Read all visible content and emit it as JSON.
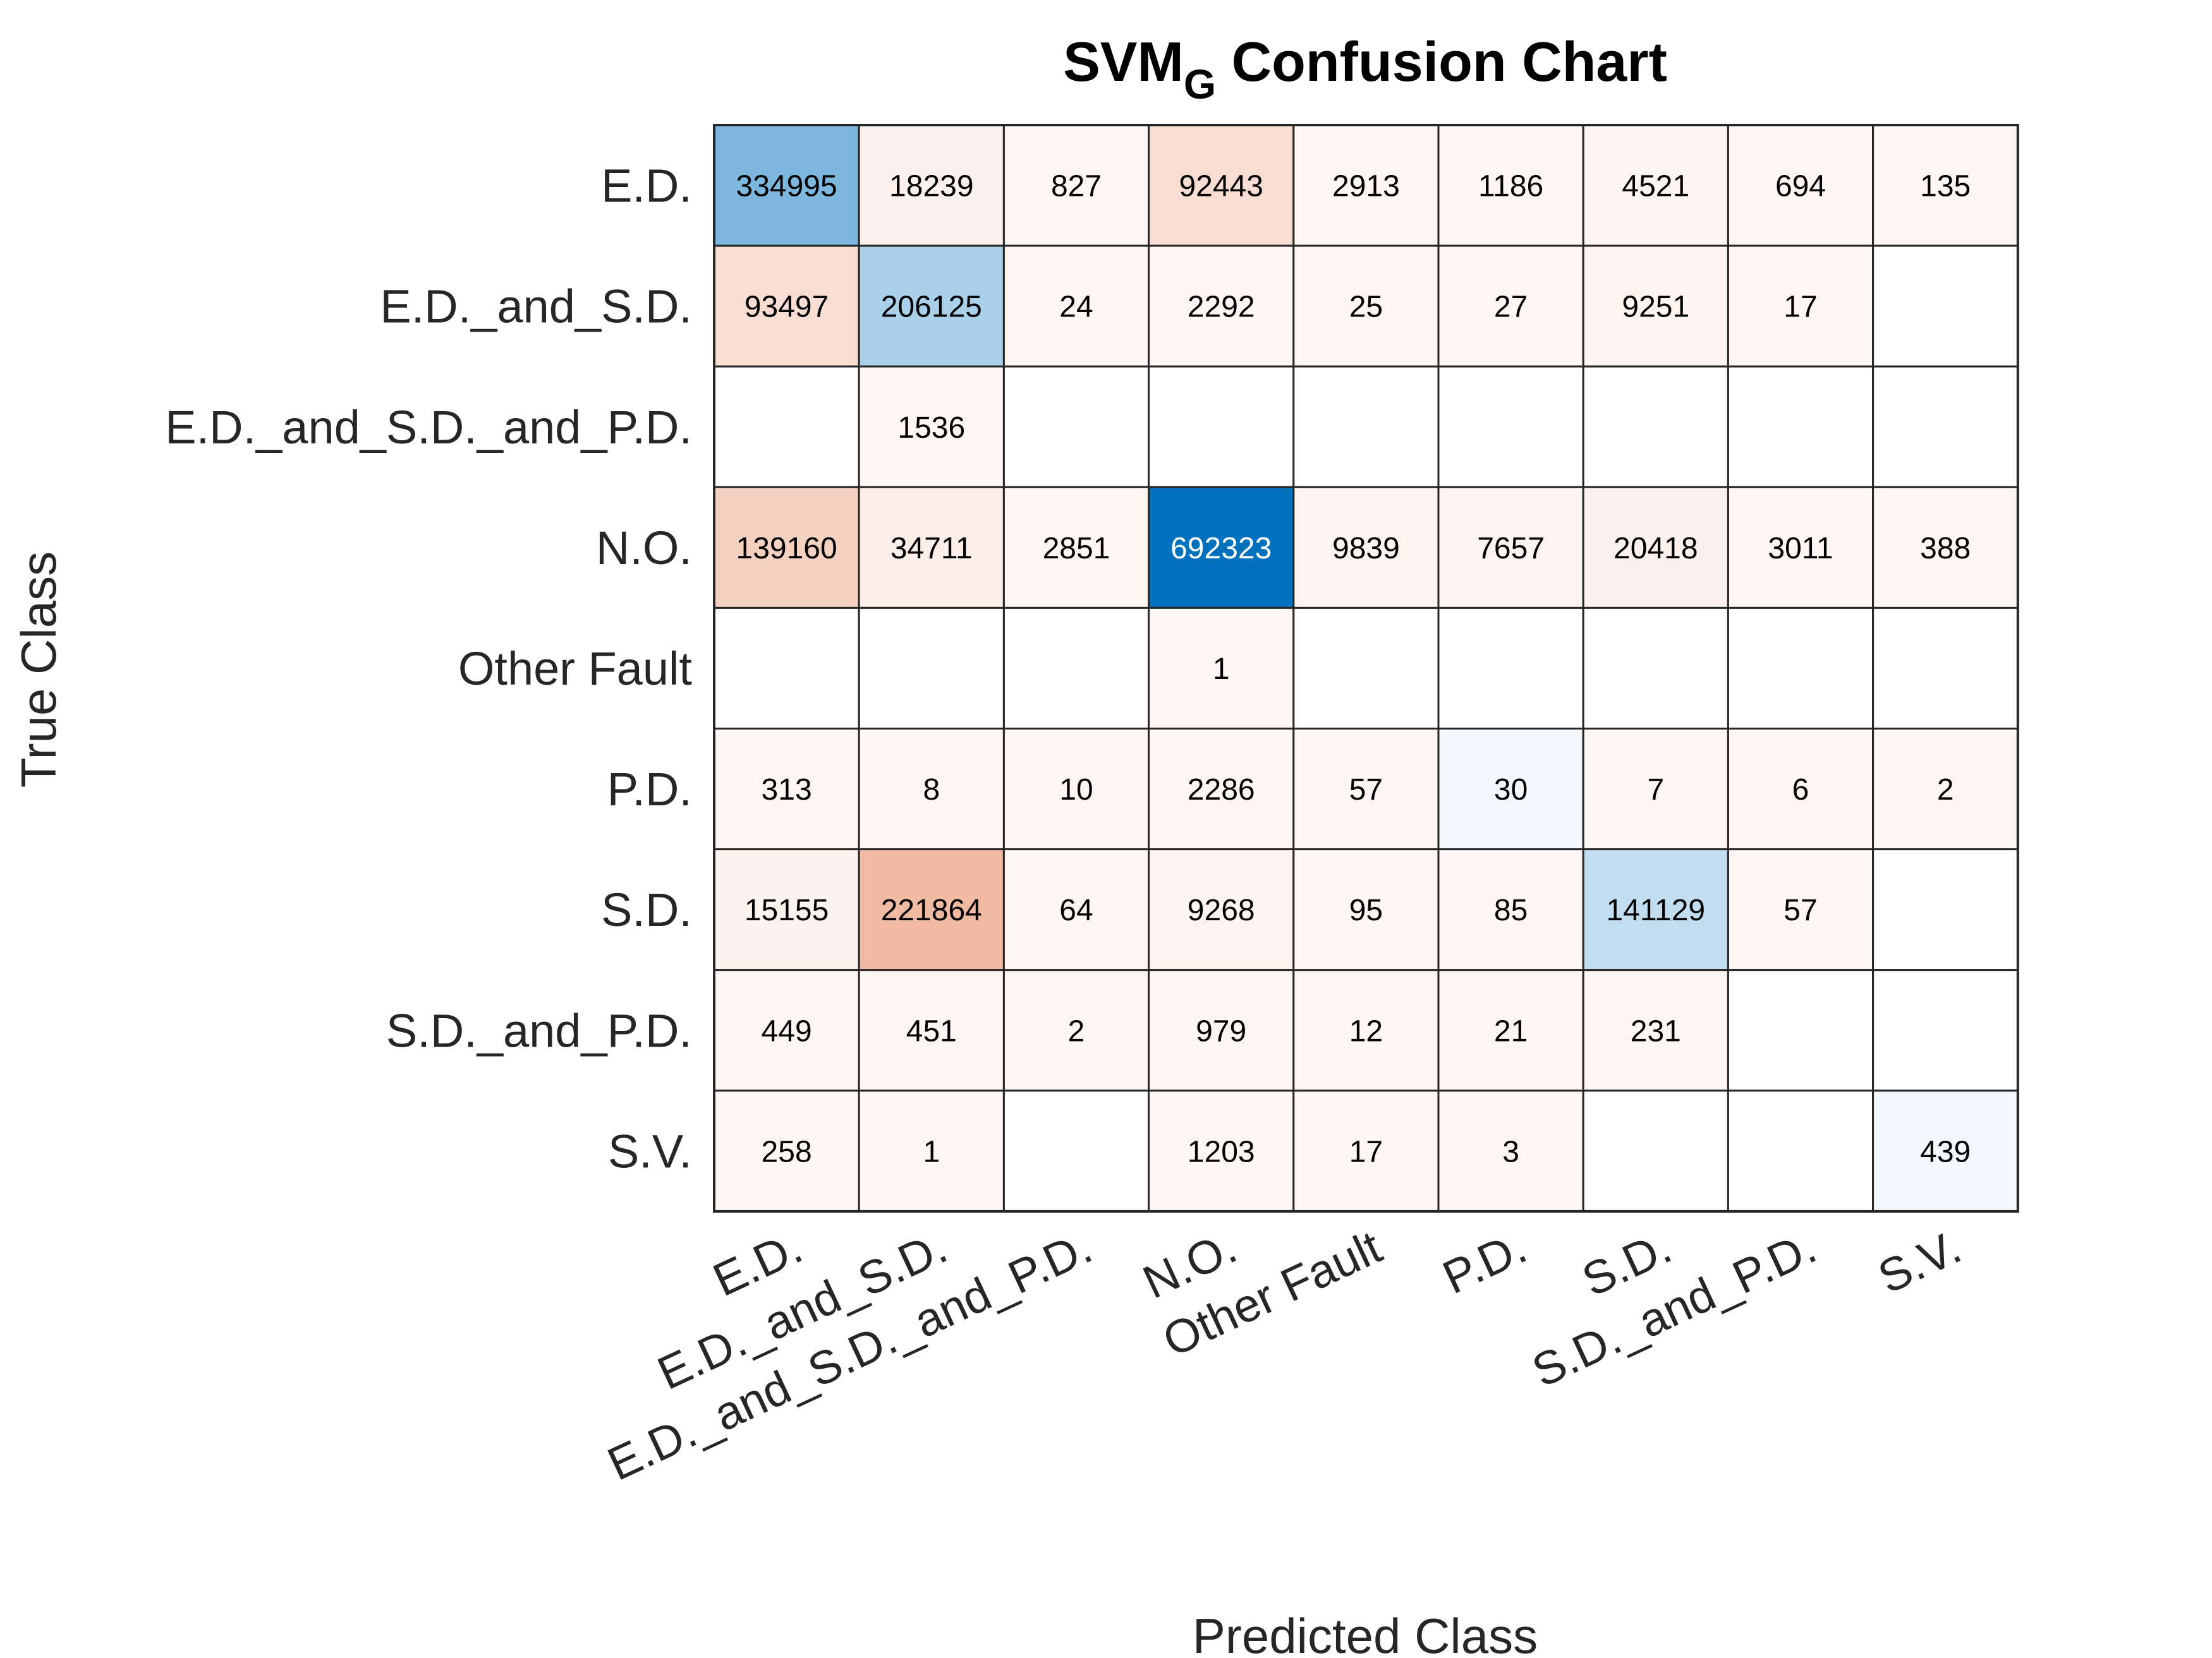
{
  "chart_data": {
    "type": "heatmap",
    "title_main": "SVM",
    "title_sub": "G",
    "title_rest": " Confusion Chart",
    "xlabel": "Predicted Class",
    "ylabel": "True Class",
    "row_labels": [
      "E.D.",
      "E.D._and_S.D.",
      "E.D._and_S.D._and_P.D.",
      "N.O.",
      "Other Fault",
      "P.D.",
      "S.D.",
      "S.D._and_P.D.",
      "S.V."
    ],
    "col_labels": [
      "E.D.",
      "E.D._and_S.D.",
      "E.D._and_S.D._and_P.D.",
      "N.O.",
      "Other Fault",
      "P.D.",
      "S.D.",
      "S.D._and_P.D.",
      "S.V."
    ],
    "matrix": [
      [
        334995,
        18239,
        827,
        92443,
        2913,
        1186,
        4521,
        694,
        135
      ],
      [
        93497,
        206125,
        24,
        2292,
        25,
        27,
        9251,
        17,
        null
      ],
      [
        null,
        1536,
        null,
        null,
        null,
        null,
        null,
        null,
        null
      ],
      [
        139160,
        34711,
        2851,
        692323,
        9839,
        7657,
        20418,
        3011,
        388
      ],
      [
        null,
        null,
        null,
        1,
        null,
        null,
        null,
        null,
        null
      ],
      [
        313,
        8,
        10,
        2286,
        57,
        30,
        7,
        6,
        2
      ],
      [
        15155,
        221864,
        64,
        9268,
        95,
        85,
        141129,
        57,
        null
      ],
      [
        449,
        451,
        2,
        979,
        12,
        21,
        231,
        null,
        null
      ],
      [
        258,
        1,
        null,
        1203,
        17,
        3,
        null,
        null,
        439
      ]
    ],
    "colors": {
      "diagonal": "#0072bd",
      "off_diagonal": "#d95319",
      "empty": "#ffffff",
      "grid": "#262626",
      "text_dark": "#000000",
      "text_light": "#ffffff"
    },
    "grid": true,
    "legend": "none"
  }
}
